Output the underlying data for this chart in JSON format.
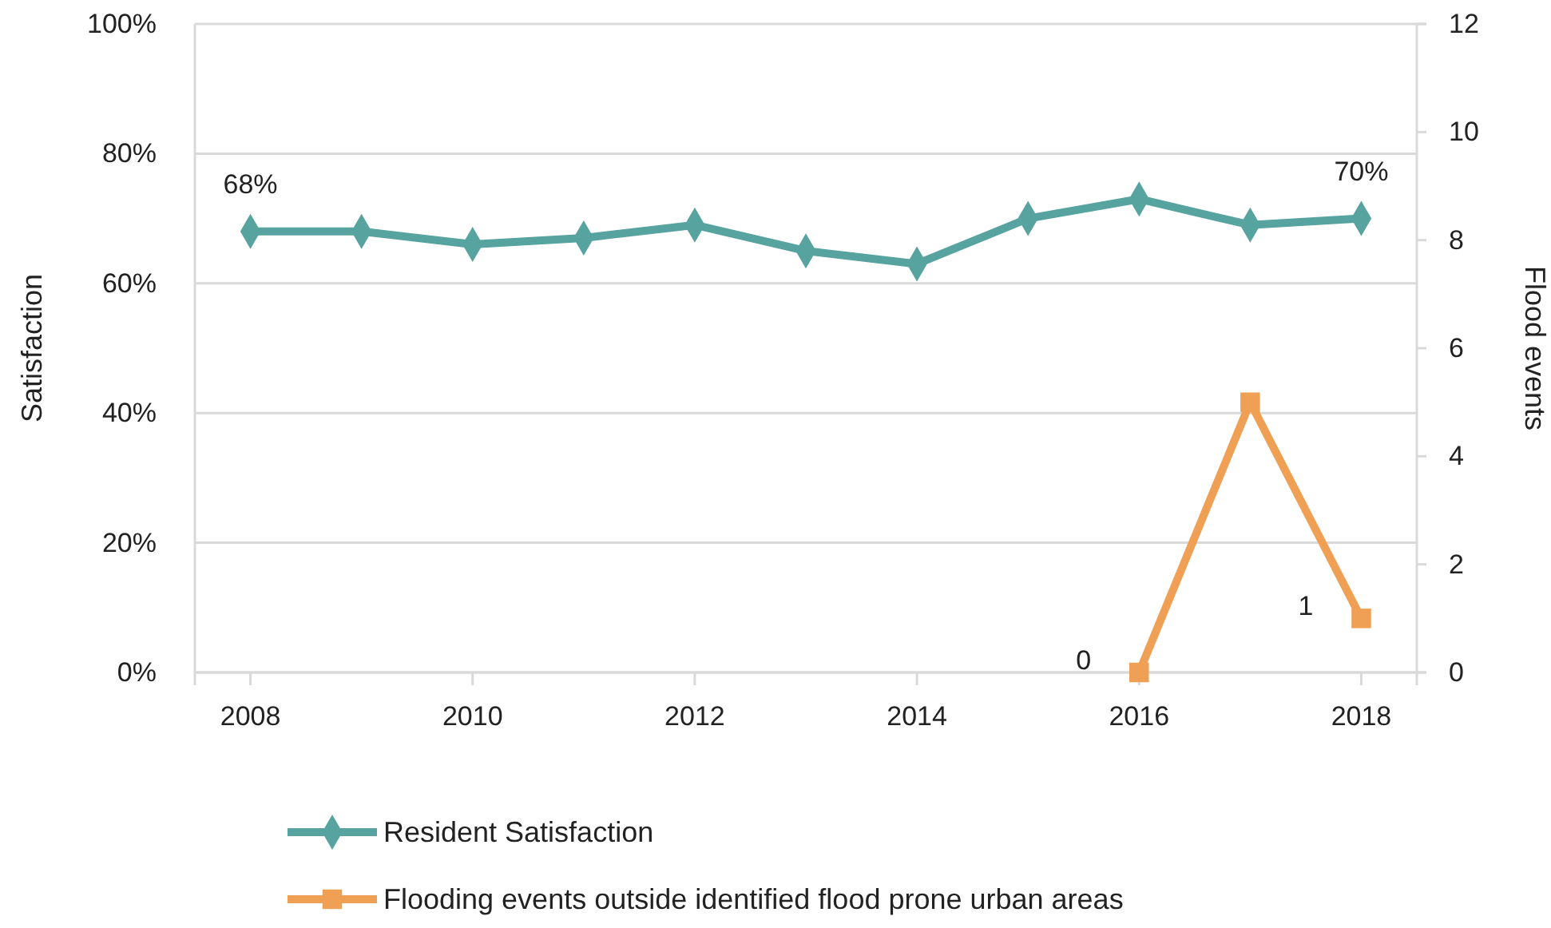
{
  "chart_data": {
    "type": "line",
    "xlabel": null,
    "ylabel": "Satisfaction",
    "y2label": "Flood events",
    "x": [
      2008,
      2009,
      2010,
      2011,
      2012,
      2013,
      2014,
      2015,
      2016,
      2017,
      2018
    ],
    "xlim": [
      2007.5,
      2018.5
    ],
    "xticks": [
      2008,
      2010,
      2012,
      2014,
      2016,
      2018
    ],
    "ylim": [
      0,
      100
    ],
    "yticks": [
      {
        "value": 0,
        "label": "0%"
      },
      {
        "value": 20,
        "label": "20%"
      },
      {
        "value": 40,
        "label": "40%"
      },
      {
        "value": 60,
        "label": "60%"
      },
      {
        "value": 80,
        "label": "80%"
      },
      {
        "value": 100,
        "label": "100%"
      }
    ],
    "y2lim": [
      0,
      12
    ],
    "y2ticks": [
      0,
      2,
      4,
      6,
      8,
      10,
      12
    ],
    "grid": "y",
    "legend": "bottom",
    "series": [
      {
        "name": "Resident Satisfaction",
        "color": "#56a3a0",
        "marker": "diamond",
        "values": [
          68,
          68,
          66,
          67,
          69,
          65,
          63,
          70,
          73,
          69,
          70
        ],
        "value_labels": [
          "68%",
          null,
          null,
          null,
          null,
          null,
          null,
          null,
          null,
          null,
          "70%"
        ]
      },
      {
        "name": "Flooding events outside identified flood prone urban areas",
        "color": "#f0a055",
        "marker": "square",
        "axis": "y2",
        "values": [
          null,
          null,
          null,
          null,
          null,
          null,
          null,
          null,
          0,
          5,
          1
        ],
        "value_labels": [
          null,
          null,
          null,
          null,
          null,
          null,
          null,
          null,
          "0",
          null,
          "1"
        ]
      }
    ]
  }
}
